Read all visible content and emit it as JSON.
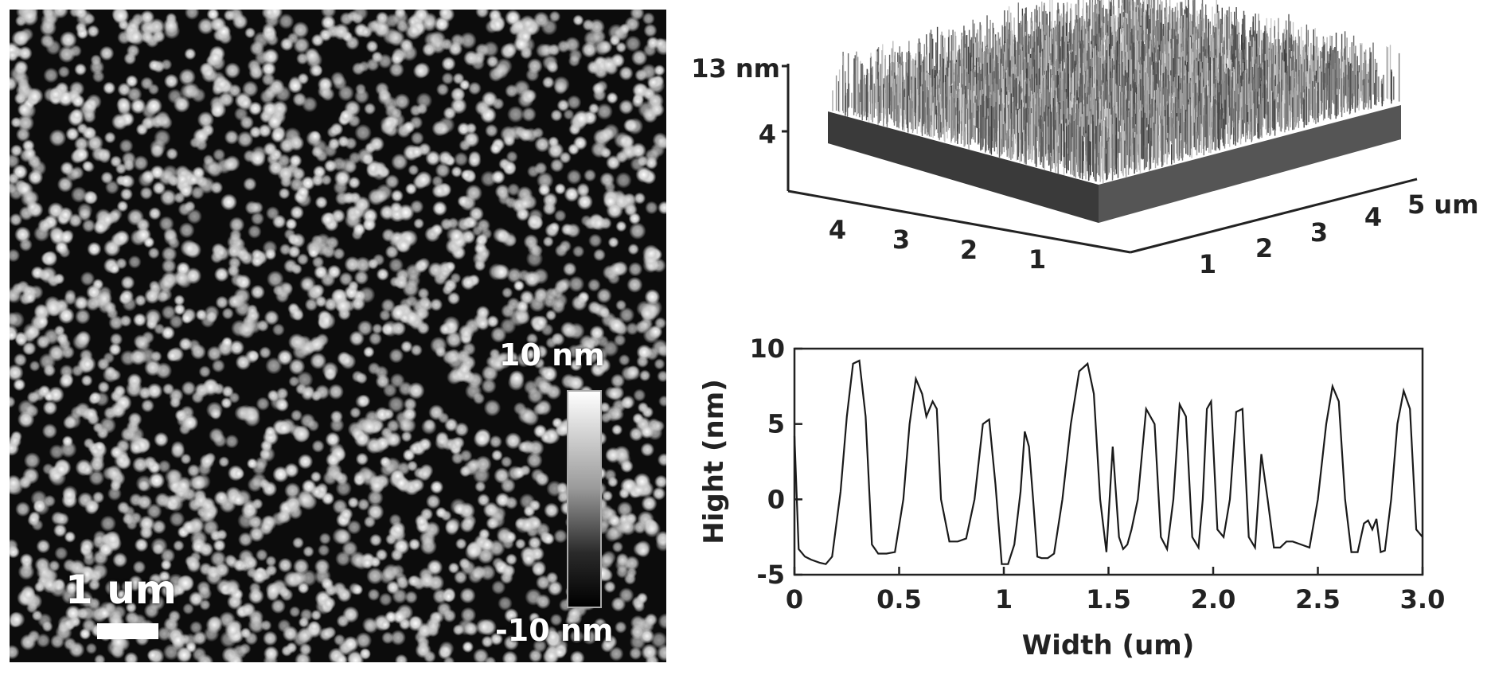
{
  "afm_image": {
    "scale_bar_label": "1 um",
    "colorbar_max_label": "10 nm",
    "colorbar_min_label": "-10 nm"
  },
  "chart_data": [
    {
      "type": "area",
      "title": "",
      "z_tick_labels": [
        "13 nm",
        "4"
      ],
      "x_tick_labels": [
        "4",
        "3",
        "2",
        "1"
      ],
      "y_tick_labels": [
        "1",
        "2",
        "3",
        "4",
        "5 um"
      ],
      "zlim": [
        0,
        13
      ],
      "xlim": [
        0,
        5
      ],
      "ylim": [
        0,
        5
      ]
    },
    {
      "type": "line",
      "title": "",
      "xlabel": "Width (um)",
      "ylabel": "Hight (nm)",
      "xlim": [
        0,
        3.0
      ],
      "ylim": [
        -5,
        10
      ],
      "x_ticks": [
        0,
        0.5,
        1,
        1.5,
        2.0,
        2.5,
        3.0
      ],
      "x_tick_labels": [
        "0",
        "0.5",
        "1",
        "1.5",
        "2.0",
        "2.5",
        "3.0"
      ],
      "y_ticks": [
        10,
        5,
        0,
        -5
      ],
      "y_tick_labels": [
        "10",
        "5",
        "0",
        "-5"
      ],
      "series": [
        {
          "x": [
            0,
            0.02,
            0.05,
            0.08,
            0.12,
            0.15,
            0.18,
            0.22,
            0.25,
            0.28,
            0.31,
            0.34,
            0.37,
            0.4,
            0.44,
            0.48,
            0.52,
            0.55,
            0.58,
            0.61,
            0.63,
            0.66,
            0.68,
            0.7,
            0.74,
            0.78,
            0.82,
            0.86,
            0.9,
            0.93,
            0.96,
            0.99,
            1.02,
            1.05,
            1.08,
            1.1,
            1.12,
            1.14,
            1.16,
            1.18,
            1.21,
            1.24,
            1.28,
            1.32,
            1.36,
            1.4,
            1.43,
            1.46,
            1.49,
            1.52,
            1.55,
            1.57,
            1.59,
            1.61,
            1.64,
            1.68,
            1.72,
            1.75,
            1.78,
            1.81,
            1.84,
            1.87,
            1.9,
            1.93,
            1.95,
            1.97,
            1.99,
            2.02,
            2.05,
            2.08,
            2.11,
            2.14,
            2.17,
            2.2,
            2.23,
            2.26,
            2.29,
            2.32,
            2.35,
            2.38,
            2.42,
            2.46,
            2.5,
            2.54,
            2.57,
            2.6,
            2.63,
            2.66,
            2.69,
            2.72,
            2.74,
            2.76,
            2.78,
            2.8,
            2.82,
            2.85,
            2.88,
            2.91,
            2.94,
            2.97,
            3.0
          ],
          "values": [
            4.2,
            -3.3,
            -3.8,
            -4,
            -4.2,
            -4.3,
            -3.8,
            0.5,
            5.5,
            9,
            9.2,
            5.5,
            -3,
            -3.6,
            -3.6,
            -3.5,
            0,
            5,
            8,
            7,
            5.5,
            6.5,
            6,
            0,
            -2.8,
            -2.8,
            -2.6,
            0,
            5,
            5.3,
            1,
            -4.3,
            -4.3,
            -3,
            0.5,
            4.5,
            3.5,
            0,
            -3.8,
            -3.9,
            -3.9,
            -3.6,
            0,
            5,
            8.5,
            9,
            7,
            0,
            -3.5,
            3.5,
            -2.5,
            -3.3,
            -3,
            -2,
            0,
            6,
            5,
            -2.5,
            -3.3,
            0,
            6.3,
            5.5,
            -2.5,
            -3.2,
            0,
            6,
            6.5,
            -2,
            -2.5,
            0,
            5.8,
            6,
            -2.5,
            -3.2,
            3,
            0,
            -3.2,
            -3.2,
            -2.8,
            -2.8,
            -3,
            -3.2,
            0,
            5,
            7.5,
            6.5,
            0,
            -3.5,
            -3.5,
            -1.6,
            -1.4,
            -2,
            -1.3,
            -3.5,
            -3.4,
            0,
            5,
            7.2,
            6,
            -2,
            -2.5
          ]
        }
      ]
    }
  ]
}
